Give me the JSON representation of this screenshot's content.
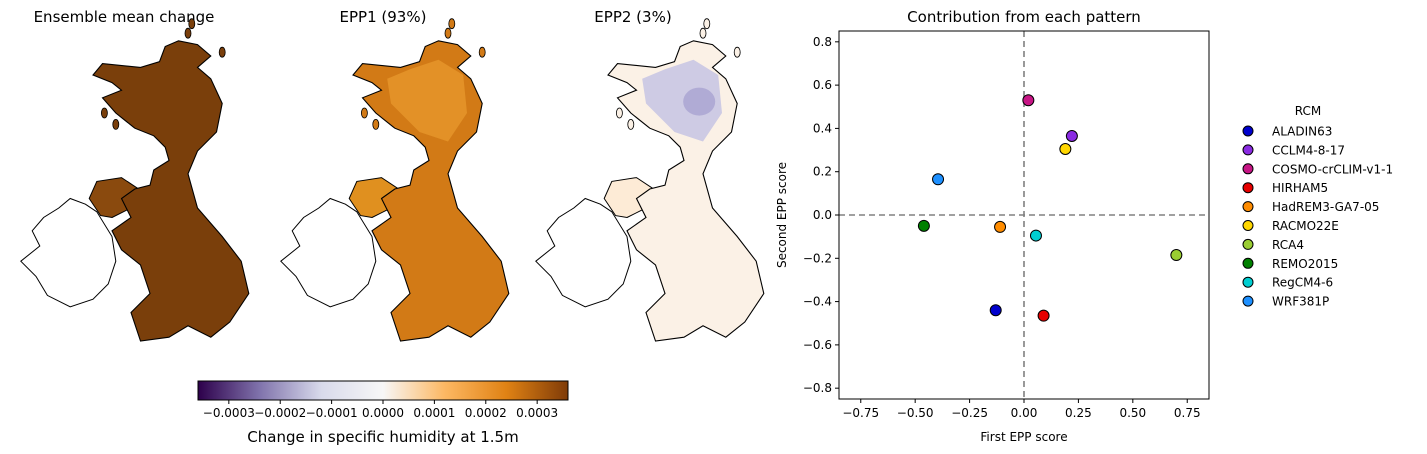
{
  "maps": {
    "panels": [
      {
        "title": "Ensemble mean change",
        "fill": "#7a3f0b",
        "ireland_fill": "#8a4a0e",
        "anomaly": "none"
      },
      {
        "title": "EPP1 (93%)",
        "fill": "#d27a16",
        "ireland_fill": "#e0901f",
        "anomaly": "north"
      },
      {
        "title": "EPP2 (3%)",
        "fill": "#fbf1e6",
        "ireland_fill": "#fdebd6",
        "anomaly": "purple"
      }
    ],
    "colorbar": {
      "label": "Change in specific humidity at 1.5m",
      "min": -0.00036,
      "max": 0.00036,
      "ticks": [
        -0.0003,
        -0.0002,
        -0.0001,
        0.0,
        0.0001,
        0.0002,
        0.0003
      ],
      "tick_labels": [
        "−0.0003",
        "−0.0002",
        "−0.0001",
        "0.0000",
        "0.0001",
        "0.0002",
        "0.0003"
      ],
      "colors": [
        "#2d004b",
        "#8073ac",
        "#d8daeb",
        "#f7f7f7",
        "#fdb863",
        "#e08214",
        "#7f3b08"
      ]
    }
  },
  "chart_data": {
    "type": "scatter",
    "title": "Contribution from each pattern",
    "xlabel": "First EPP score",
    "ylabel": "Second EPP score",
    "xlim": [
      -0.85,
      0.85
    ],
    "ylim": [
      -0.85,
      0.85
    ],
    "xticks": [
      -0.75,
      -0.5,
      -0.25,
      0.0,
      0.25,
      0.5,
      0.75
    ],
    "xtick_labels": [
      "−0.75",
      "−0.50",
      "−0.25",
      "0.00",
      "0.25",
      "0.50",
      "0.75"
    ],
    "yticks": [
      -0.8,
      -0.6,
      -0.4,
      -0.2,
      0.0,
      0.2,
      0.4,
      0.6,
      0.8
    ],
    "ytick_labels": [
      "−0.8",
      "−0.6",
      "−0.4",
      "−0.2",
      "0.0",
      "0.2",
      "0.4",
      "0.6",
      "0.8"
    ],
    "grid": false,
    "reference_lines": {
      "x": 0.0,
      "y": 0.0,
      "style": "dashed",
      "color": "#808080"
    },
    "legend": {
      "title": "RCM",
      "placement": "right-outside"
    },
    "series": [
      {
        "name": "ALADIN63",
        "color": "#0000cd",
        "x": -0.13,
        "y": -0.44
      },
      {
        "name": "CCLM4-8-17",
        "color": "#8a2be2",
        "x": 0.22,
        "y": 0.365
      },
      {
        "name": "COSMO-crCLIM-v1-1",
        "color": "#c71585",
        "x": 0.02,
        "y": 0.53
      },
      {
        "name": "HIRHAM5",
        "color": "#e60000",
        "x": 0.09,
        "y": -0.465
      },
      {
        "name": "HadREM3-GA7-05",
        "color": "#ff8c00",
        "x": -0.11,
        "y": -0.055
      },
      {
        "name": "RACMO22E",
        "color": "#ffd700",
        "x": 0.19,
        "y": 0.305
      },
      {
        "name": "RCA4",
        "color": "#9acd32",
        "x": 0.7,
        "y": -0.185
      },
      {
        "name": "REMO2015",
        "color": "#008000",
        "x": -0.46,
        "y": -0.05
      },
      {
        "name": "RegCM4-6",
        "color": "#00ced1",
        "x": 0.055,
        "y": -0.095
      },
      {
        "name": "WRF381P",
        "color": "#1e90ff",
        "x": -0.395,
        "y": 0.165
      }
    ]
  }
}
